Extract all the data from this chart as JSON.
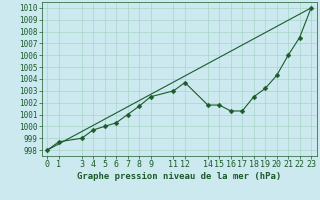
{
  "title": "Graphe pression niveau de la mer (hPa)",
  "background_color": "#cde9f0",
  "grid_color": "#a8d5c8",
  "line_color": "#1a5c2a",
  "marker": "D",
  "marker_size": 2.5,
  "xlabel_fontsize": 6,
  "ylabel_fontsize": 5.5,
  "title_fontsize": 6.5,
  "xlim": [
    -0.5,
    23.5
  ],
  "ylim": [
    997.5,
    1010.5
  ],
  "yticks": [
    998,
    999,
    1000,
    1001,
    1002,
    1003,
    1004,
    1005,
    1006,
    1007,
    1008,
    1009,
    1010
  ],
  "xticks": [
    0,
    1,
    3,
    4,
    5,
    6,
    7,
    8,
    9,
    11,
    12,
    14,
    15,
    16,
    17,
    18,
    19,
    20,
    21,
    22,
    23
  ],
  "hours": [
    0,
    1,
    3,
    4,
    5,
    6,
    7,
    8,
    9,
    11,
    12,
    14,
    15,
    16,
    17,
    18,
    19,
    20,
    21,
    22,
    23
  ],
  "pressure": [
    998.0,
    998.7,
    999.0,
    999.7,
    1000.0,
    1000.3,
    1001.0,
    1001.7,
    1002.5,
    1003.0,
    1003.7,
    1001.8,
    1001.8,
    1001.3,
    1001.3,
    1002.5,
    1003.2,
    1004.3,
    1006.0,
    1007.5,
    1010.0
  ],
  "trend_hours": [
    0,
    23
  ],
  "trend_pressure": [
    998.0,
    1010.0
  ]
}
